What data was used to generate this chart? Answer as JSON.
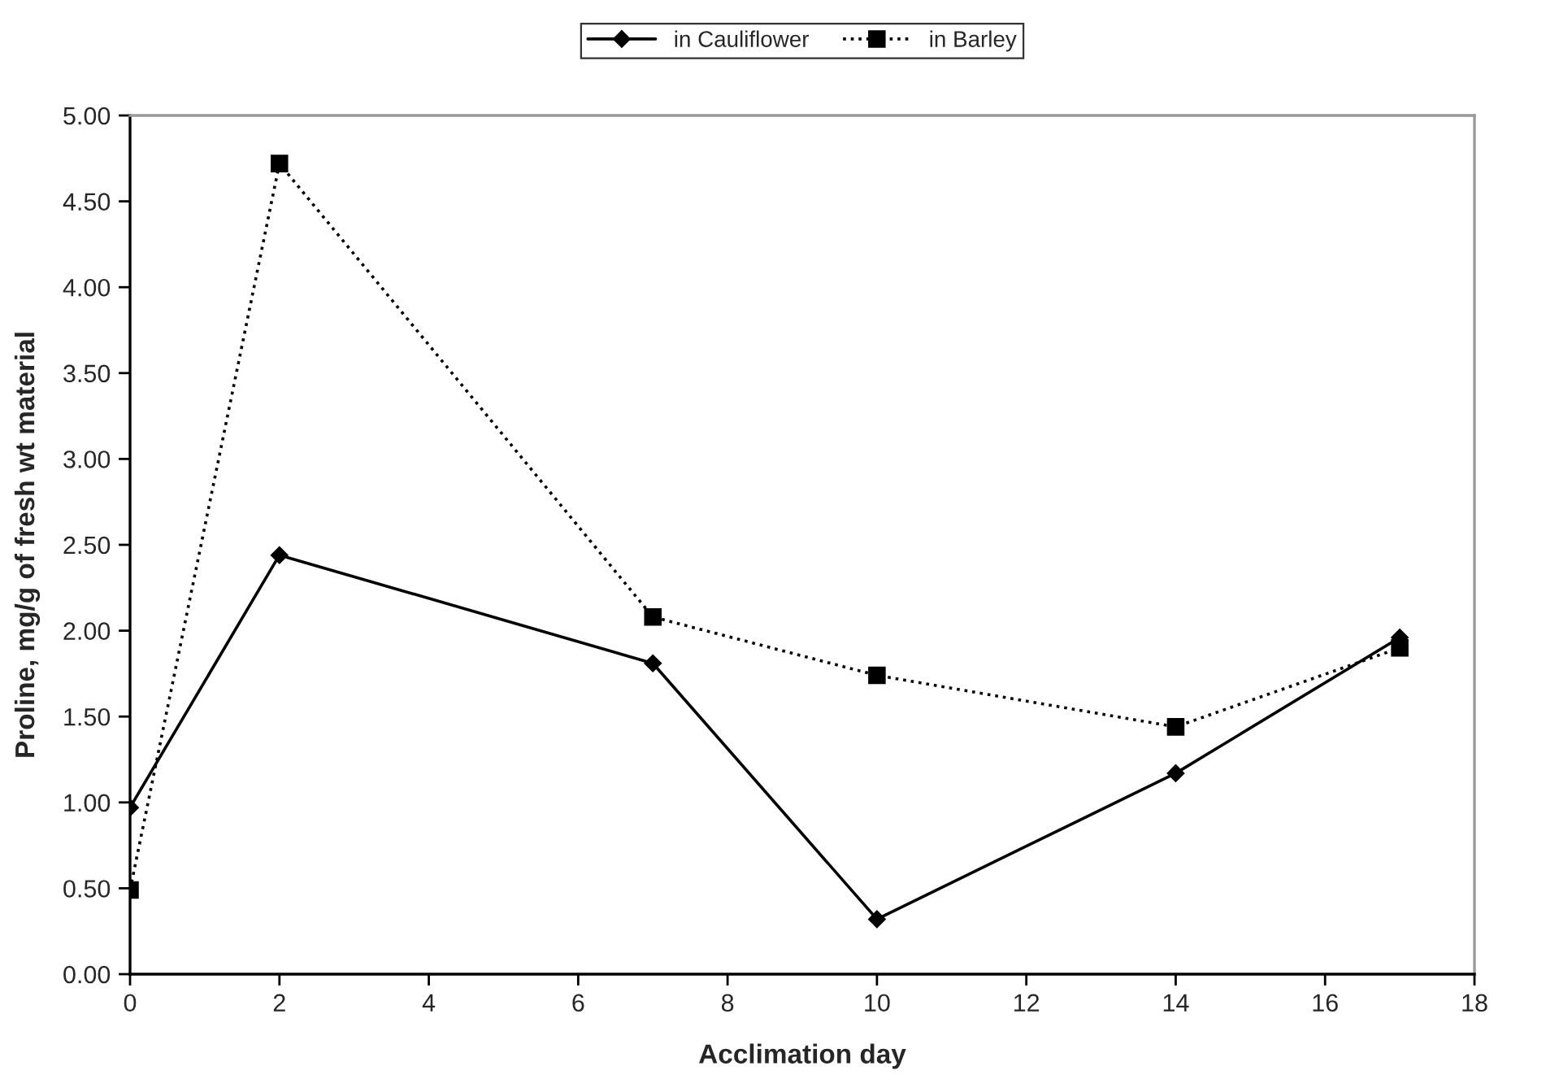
{
  "chart_data": {
    "type": "line",
    "xlabel": "Acclimation day",
    "ylabel": "Proline, mg/g of fresh wt material",
    "xlim": [
      0,
      18
    ],
    "xticks": [
      0,
      2,
      4,
      6,
      8,
      10,
      12,
      14,
      16,
      18
    ],
    "ylim": [
      0,
      5
    ],
    "yticks": [
      {
        "value": 0,
        "label": "0.00"
      },
      {
        "value": 0.5,
        "label": "0.50"
      },
      {
        "value": 1,
        "label": "1.00"
      },
      {
        "value": 1.5,
        "label": "1.50"
      },
      {
        "value": 2,
        "label": "2.00"
      },
      {
        "value": 2.5,
        "label": "2.50"
      },
      {
        "value": 3,
        "label": "3.00"
      },
      {
        "value": 3.5,
        "label": "3.50"
      },
      {
        "value": 4,
        "label": "4.00"
      },
      {
        "value": 4.5,
        "label": "4.50"
      },
      {
        "value": 5,
        "label": "5.00"
      }
    ],
    "x": [
      0,
      2,
      7,
      10,
      14,
      17
    ],
    "grid": false,
    "legend": "top",
    "series": [
      {
        "name": "in Cauliflower",
        "color": "#000000",
        "marker": "diamond",
        "line_style": "solid",
        "values": [
          0.97,
          2.44,
          1.81,
          0.32,
          1.17,
          1.96
        ]
      },
      {
        "name": "in Barley",
        "color": "#000000",
        "marker": "square",
        "line_style": "dotted",
        "values": [
          0.49,
          4.72,
          2.08,
          1.74,
          1.44,
          1.9
        ]
      }
    ]
  }
}
